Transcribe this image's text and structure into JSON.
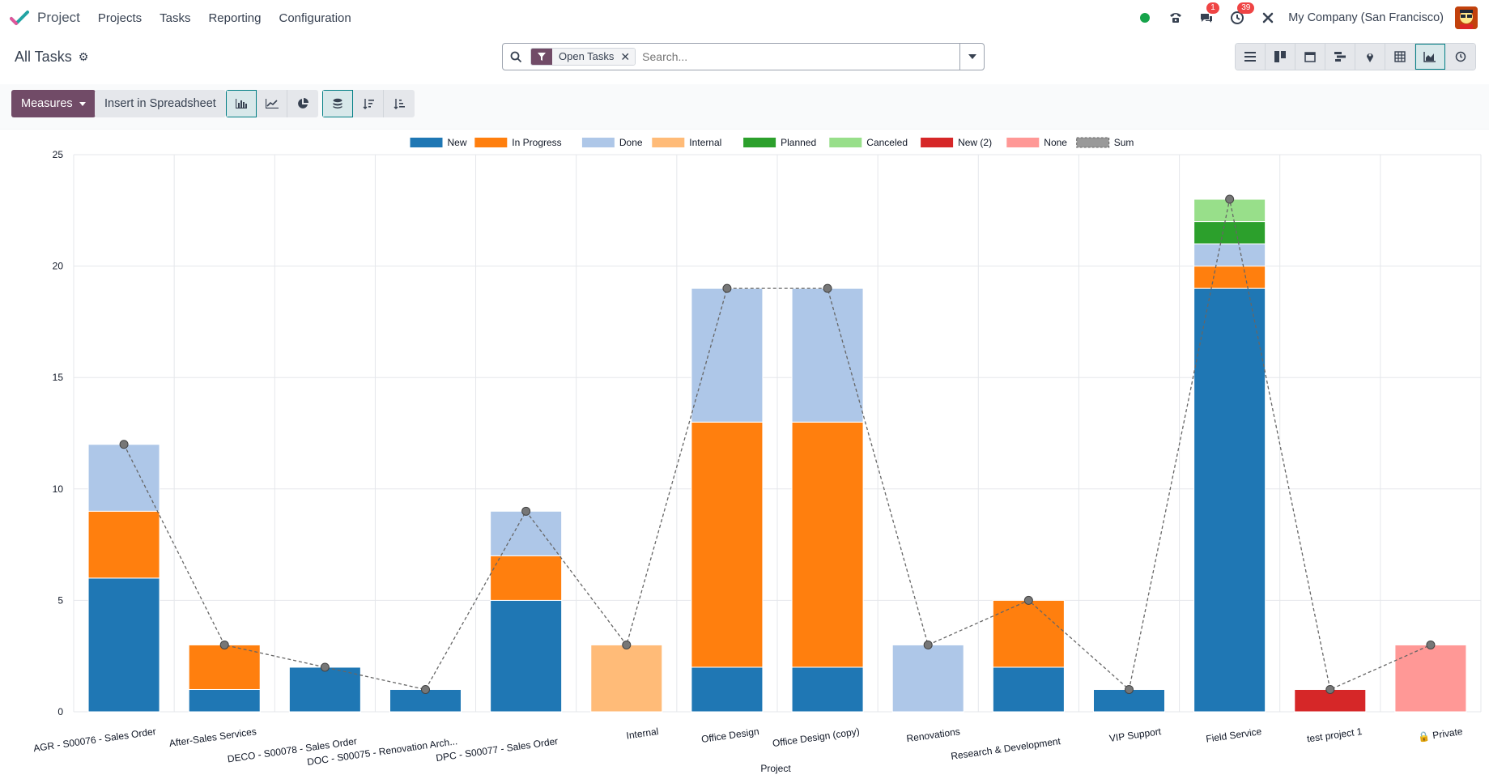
{
  "app": {
    "name": "Project"
  },
  "menu": {
    "items": [
      "Projects",
      "Tasks",
      "Reporting",
      "Configuration"
    ]
  },
  "systray": {
    "messages_count": "1",
    "activity_count": "39",
    "company": "My Company (San Francisco)"
  },
  "breadcrumb": {
    "title": "All Tasks"
  },
  "search": {
    "facet_label": "Open Tasks",
    "placeholder": "Search..."
  },
  "toolbar": {
    "measures_label": "Measures",
    "insert_label": "Insert in Spreadsheet"
  },
  "views": [
    "list",
    "kanban",
    "calendar",
    "gantt",
    "map",
    "pivot",
    "graph",
    "activity"
  ],
  "colors": {
    "accent": "#714b67",
    "active_teal": "#017e84"
  },
  "chart_data": {
    "type": "bar",
    "stacked": true,
    "xlabel": "Project",
    "ylabel": "",
    "ylim": [
      0,
      25
    ],
    "yticks": [
      0,
      5,
      10,
      15,
      20,
      25
    ],
    "grid": true,
    "legend_position": "top",
    "categories": [
      "AGR - S00076 - Sales Order",
      "After-Sales Services",
      "DECO - S00078 - Sales Order",
      "DOC - S00075 - Renovation Arch...",
      "DPC - S00077 - Sales Order",
      "Internal",
      "Office Design",
      "Office Design (copy)",
      "Renovations",
      "Research & Development",
      "VIP Support",
      "Field Service",
      "test project 1",
      "🔒 Private"
    ],
    "series": [
      {
        "name": "New",
        "color": "#1f77b4",
        "values": [
          6,
          1,
          2,
          1,
          5,
          0,
          2,
          2,
          0,
          2,
          1,
          19,
          0,
          0
        ]
      },
      {
        "name": "In Progress",
        "color": "#ff7f0e",
        "values": [
          3,
          2,
          0,
          0,
          2,
          0,
          11,
          11,
          0,
          3,
          0,
          1,
          0,
          0
        ]
      },
      {
        "name": "Done",
        "color": "#aec7e8",
        "values": [
          3,
          0,
          0,
          0,
          2,
          0,
          6,
          6,
          3,
          0,
          0,
          1,
          0,
          0
        ]
      },
      {
        "name": "Internal",
        "color": "#ffbb78",
        "values": [
          0,
          0,
          0,
          0,
          0,
          3,
          0,
          0,
          0,
          0,
          0,
          0,
          0,
          0
        ]
      },
      {
        "name": "Planned",
        "color": "#2ca02c",
        "values": [
          0,
          0,
          0,
          0,
          0,
          0,
          0,
          0,
          0,
          0,
          0,
          1,
          0,
          0
        ]
      },
      {
        "name": "Canceled",
        "color": "#98df8a",
        "values": [
          0,
          0,
          0,
          0,
          0,
          0,
          0,
          0,
          0,
          0,
          0,
          1,
          0,
          0
        ]
      },
      {
        "name": "New (2)",
        "color": "#d62728",
        "values": [
          0,
          0,
          0,
          0,
          0,
          0,
          0,
          0,
          0,
          0,
          0,
          0,
          1,
          0
        ]
      },
      {
        "name": "None",
        "color": "#ff9896",
        "values": [
          0,
          0,
          0,
          0,
          0,
          0,
          0,
          0,
          0,
          0,
          0,
          0,
          0,
          3
        ]
      }
    ],
    "sum": {
      "name": "Sum",
      "values": [
        12,
        3,
        2,
        1,
        9,
        3,
        19,
        19,
        3,
        5,
        1,
        23,
        1,
        3
      ]
    }
  }
}
